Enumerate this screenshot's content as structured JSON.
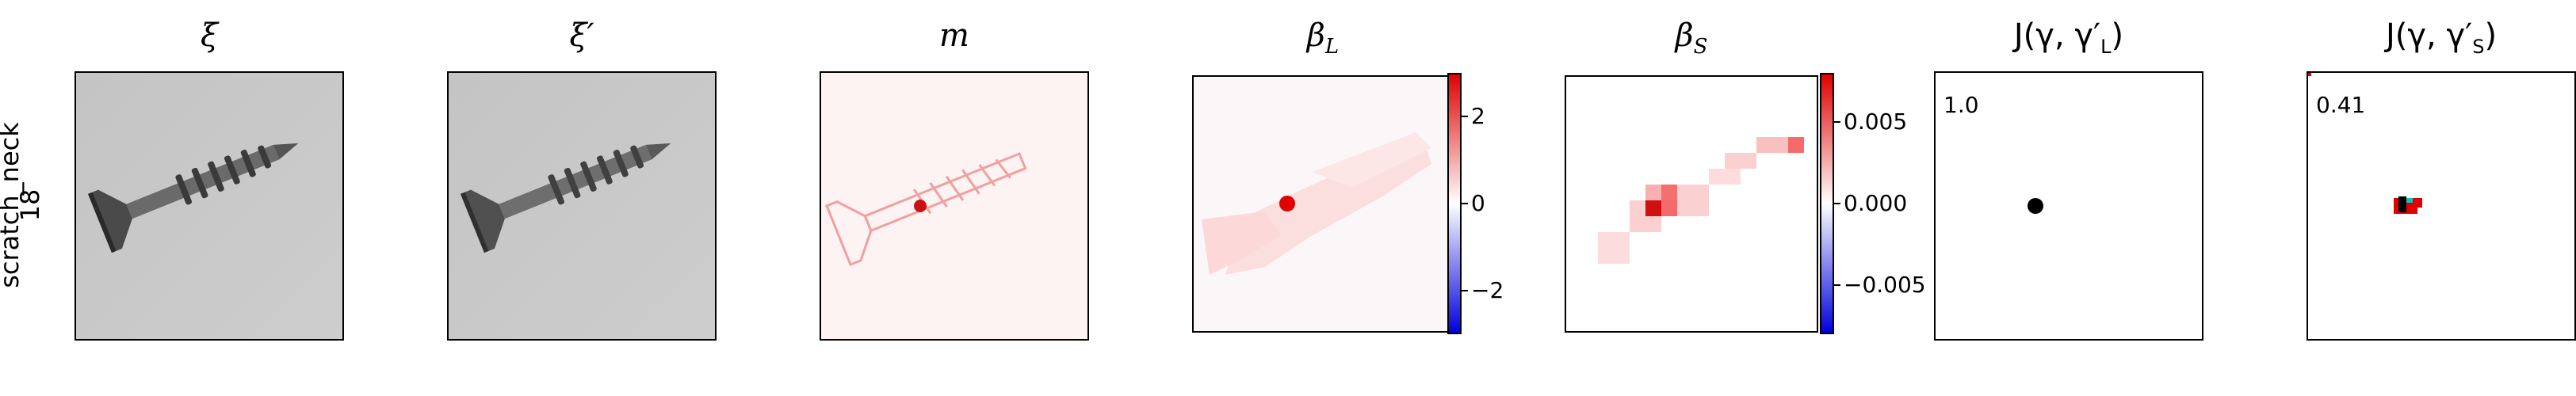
{
  "row_label": {
    "line1": "scratch_neck",
    "line2": "18"
  },
  "panels": [
    {
      "title": "ξ"
    },
    {
      "title": "ξ′"
    },
    {
      "title": "m"
    },
    {
      "title": "β",
      "sub": "L"
    },
    {
      "title": "β",
      "sub": "S"
    },
    {
      "title_prefix": "J(γ, γ′",
      "sub": "L",
      "title_suffix": ")",
      "score": "1.0"
    },
    {
      "title_prefix": "J(γ, γ′",
      "sub": "S",
      "title_suffix": ")",
      "score": "0.41"
    }
  ],
  "colorbar_L": {
    "ticks": [
      "2",
      "0",
      "−2"
    ],
    "range": [
      -3,
      3
    ],
    "tick_values": [
      2,
      0,
      -2
    ]
  },
  "colorbar_S": {
    "ticks": [
      "0.005",
      "0.000",
      "−0.005"
    ],
    "range": [
      -0.008,
      0.008
    ],
    "tick_values": [
      0.005,
      0,
      -0.005
    ]
  },
  "colors": {
    "positive": "#e00000",
    "negative": "#0000dd",
    "neutral": "#ffffff",
    "image_bg": "#c8c8c8"
  }
}
